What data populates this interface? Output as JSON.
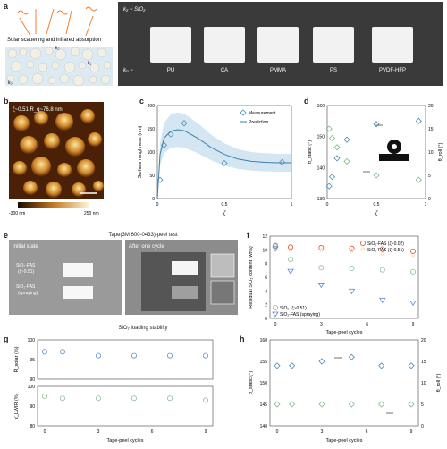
{
  "panels": {
    "a": {
      "label": "a",
      "caption": "Solar scattering and infrared absorption",
      "k2_sio2": "k₂ ~ SiO₂",
      "k0": "k₀ ~",
      "k1": "k₁",
      "k2": "k₂",
      "k0b": "k₀",
      "films": [
        "PU",
        "CA",
        "PMMA",
        "PS",
        "PVDF-HFP"
      ]
    },
    "b": {
      "label": "b",
      "info": "ζ~0.51  R_q~76.8 nm",
      "cb_min": "-300 nm",
      "cb_max": "250 nm"
    },
    "c": {
      "label": "c",
      "ylabel": "Surface roughness (nm)",
      "xlabel": "ζ",
      "legend": [
        "Measurement",
        "Prediction"
      ]
    },
    "d": {
      "label": "d",
      "ylabel_left": "θ_static (°)",
      "ylabel_right": "θ_roll (°)",
      "xlabel": "ζ"
    },
    "e": {
      "label": "e",
      "title": "Tape(3M 600-0433)-peel test",
      "initial": "Initial state",
      "after": "After one cycle",
      "s1": "SiO₂-FAS",
      "s1b": "(ζ~0.51)",
      "s2": "SiO₂-FAS",
      "s2b": "(spraying)"
    },
    "f": {
      "label": "f",
      "ylabel": "Residual SiO₂ content (wt%)",
      "xlabel": "Tape-peel cycles",
      "legend": [
        "SiO₂-FAS (ζ~0.02)",
        "SiO₂-FAS (ζ~0.51)",
        "SiO₂ (ζ~0.51)",
        "SiO₂-FAS (spraying)"
      ]
    },
    "mid_title": "SiO₂ loading stability",
    "g": {
      "label": "g",
      "ylabel_top": "R̄_solar (%)",
      "ylabel_bot": "ε̄_LWIR (%)",
      "xlabel": "Tape-peel cycles"
    },
    "h": {
      "label": "h",
      "ylabel_left": "θ_static (°)",
      "ylabel_right": "θ_roll (°)",
      "xlabel": "Tape-peel cycles"
    }
  },
  "chart_data": [
    {
      "id": "c",
      "type": "scatter",
      "xlim": [
        0,
        1
      ],
      "ylim": [
        0,
        200
      ],
      "xticks": [
        0,
        0.5,
        1
      ],
      "yticks": [
        0,
        50,
        100,
        150,
        200
      ],
      "series": [
        {
          "name": "Measurement",
          "x": [
            0.02,
            0.05,
            0.1,
            0.2,
            0.5,
            0.93
          ],
          "y": [
            40,
            115,
            138,
            162,
            76,
            78
          ]
        },
        {
          "name": "Prediction",
          "x": [
            0,
            0.02,
            0.05,
            0.1,
            0.15,
            0.2,
            0.3,
            0.4,
            0.5,
            0.6,
            0.7,
            0.8,
            0.9,
            1.0
          ],
          "y": [
            0,
            95,
            130,
            145,
            148,
            146,
            130,
            110,
            95,
            85,
            80,
            78,
            77,
            77
          ]
        }
      ]
    },
    {
      "id": "d",
      "type": "scatter",
      "xlim": [
        0,
        1
      ],
      "ylim_left": [
        130,
        160
      ],
      "ylim_right": [
        0,
        20
      ],
      "xticks": [
        0,
        0.5,
        1
      ],
      "yticks_left": [
        130,
        140,
        150,
        160
      ],
      "yticks_right": [
        0,
        5,
        10,
        15,
        20
      ],
      "series": [
        {
          "name": "θ_static",
          "axis": "left",
          "x": [
            0.02,
            0.05,
            0.1,
            0.2,
            0.5,
            0.93
          ],
          "y": [
            134,
            137,
            143,
            149,
            154,
            155
          ]
        },
        {
          "name": "θ_roll",
          "axis": "right",
          "x": [
            0.02,
            0.05,
            0.1,
            0.2,
            0.5,
            0.93
          ],
          "y": [
            15,
            13,
            11,
            8,
            5,
            4
          ]
        }
      ]
    },
    {
      "id": "f",
      "type": "scatter",
      "x": [
        0,
        1,
        3,
        5,
        7,
        9
      ],
      "xlim": [
        0,
        9
      ],
      "ylim": [
        0,
        12
      ],
      "xticks": [
        0,
        3,
        6,
        9
      ],
      "yticks": [
        0,
        2,
        4,
        6,
        8,
        10,
        12
      ],
      "series": [
        {
          "name": "SiO₂-FAS (ζ~0.02)",
          "y": [
            10.6,
            10.4,
            10.3,
            10.2,
            10.1,
            9.8
          ]
        },
        {
          "name": "SiO₂-FAS (ζ~0.51)",
          "y": [
            10.8,
            10.1,
            10.0,
            9.9,
            9.4,
            9.2
          ]
        },
        {
          "name": "SiO₂ (ζ~0.51)",
          "y": [
            10.5,
            8.6,
            7.4,
            7.3,
            7.1,
            6.8
          ]
        },
        {
          "name": "SiO₂-FAS (spraying)",
          "y": [
            10.2,
            6.9,
            4.9,
            4.0,
            2.7,
            2.3
          ]
        }
      ]
    },
    {
      "id": "g",
      "type": "scatter",
      "x": [
        0,
        1,
        3,
        5,
        7,
        9
      ],
      "xlim": [
        0,
        9
      ],
      "xticks": [
        0,
        3,
        6,
        9
      ],
      "series": [
        {
          "name": "R̄_solar",
          "y": [
            97,
            97,
            96,
            96,
            96,
            96
          ],
          "ylim": [
            90,
            100
          ],
          "yticks": [
            90,
            95,
            100
          ]
        },
        {
          "name": "ε̄_LWIR",
          "y": [
            95,
            94,
            94,
            94,
            94,
            93
          ],
          "ylim": [
            80,
            100
          ],
          "yticks": [
            80,
            90,
            100
          ]
        }
      ]
    },
    {
      "id": "h",
      "type": "scatter",
      "x": [
        0,
        1,
        3,
        5,
        7,
        9
      ],
      "xlim": [
        0,
        9
      ],
      "ylim_left": [
        140,
        160
      ],
      "ylim_right": [
        0,
        20
      ],
      "xticks": [
        0,
        3,
        6,
        9
      ],
      "yticks_left": [
        140,
        145,
        150,
        155,
        160
      ],
      "yticks_right": [
        0,
        5,
        10,
        15,
        20
      ],
      "series": [
        {
          "name": "θ_static",
          "axis": "left",
          "y": [
            154,
            154,
            155,
            156,
            154,
            154
          ]
        },
        {
          "name": "θ_roll",
          "axis": "right",
          "y": [
            5,
            5,
            5,
            5,
            5,
            5
          ]
        }
      ]
    }
  ]
}
